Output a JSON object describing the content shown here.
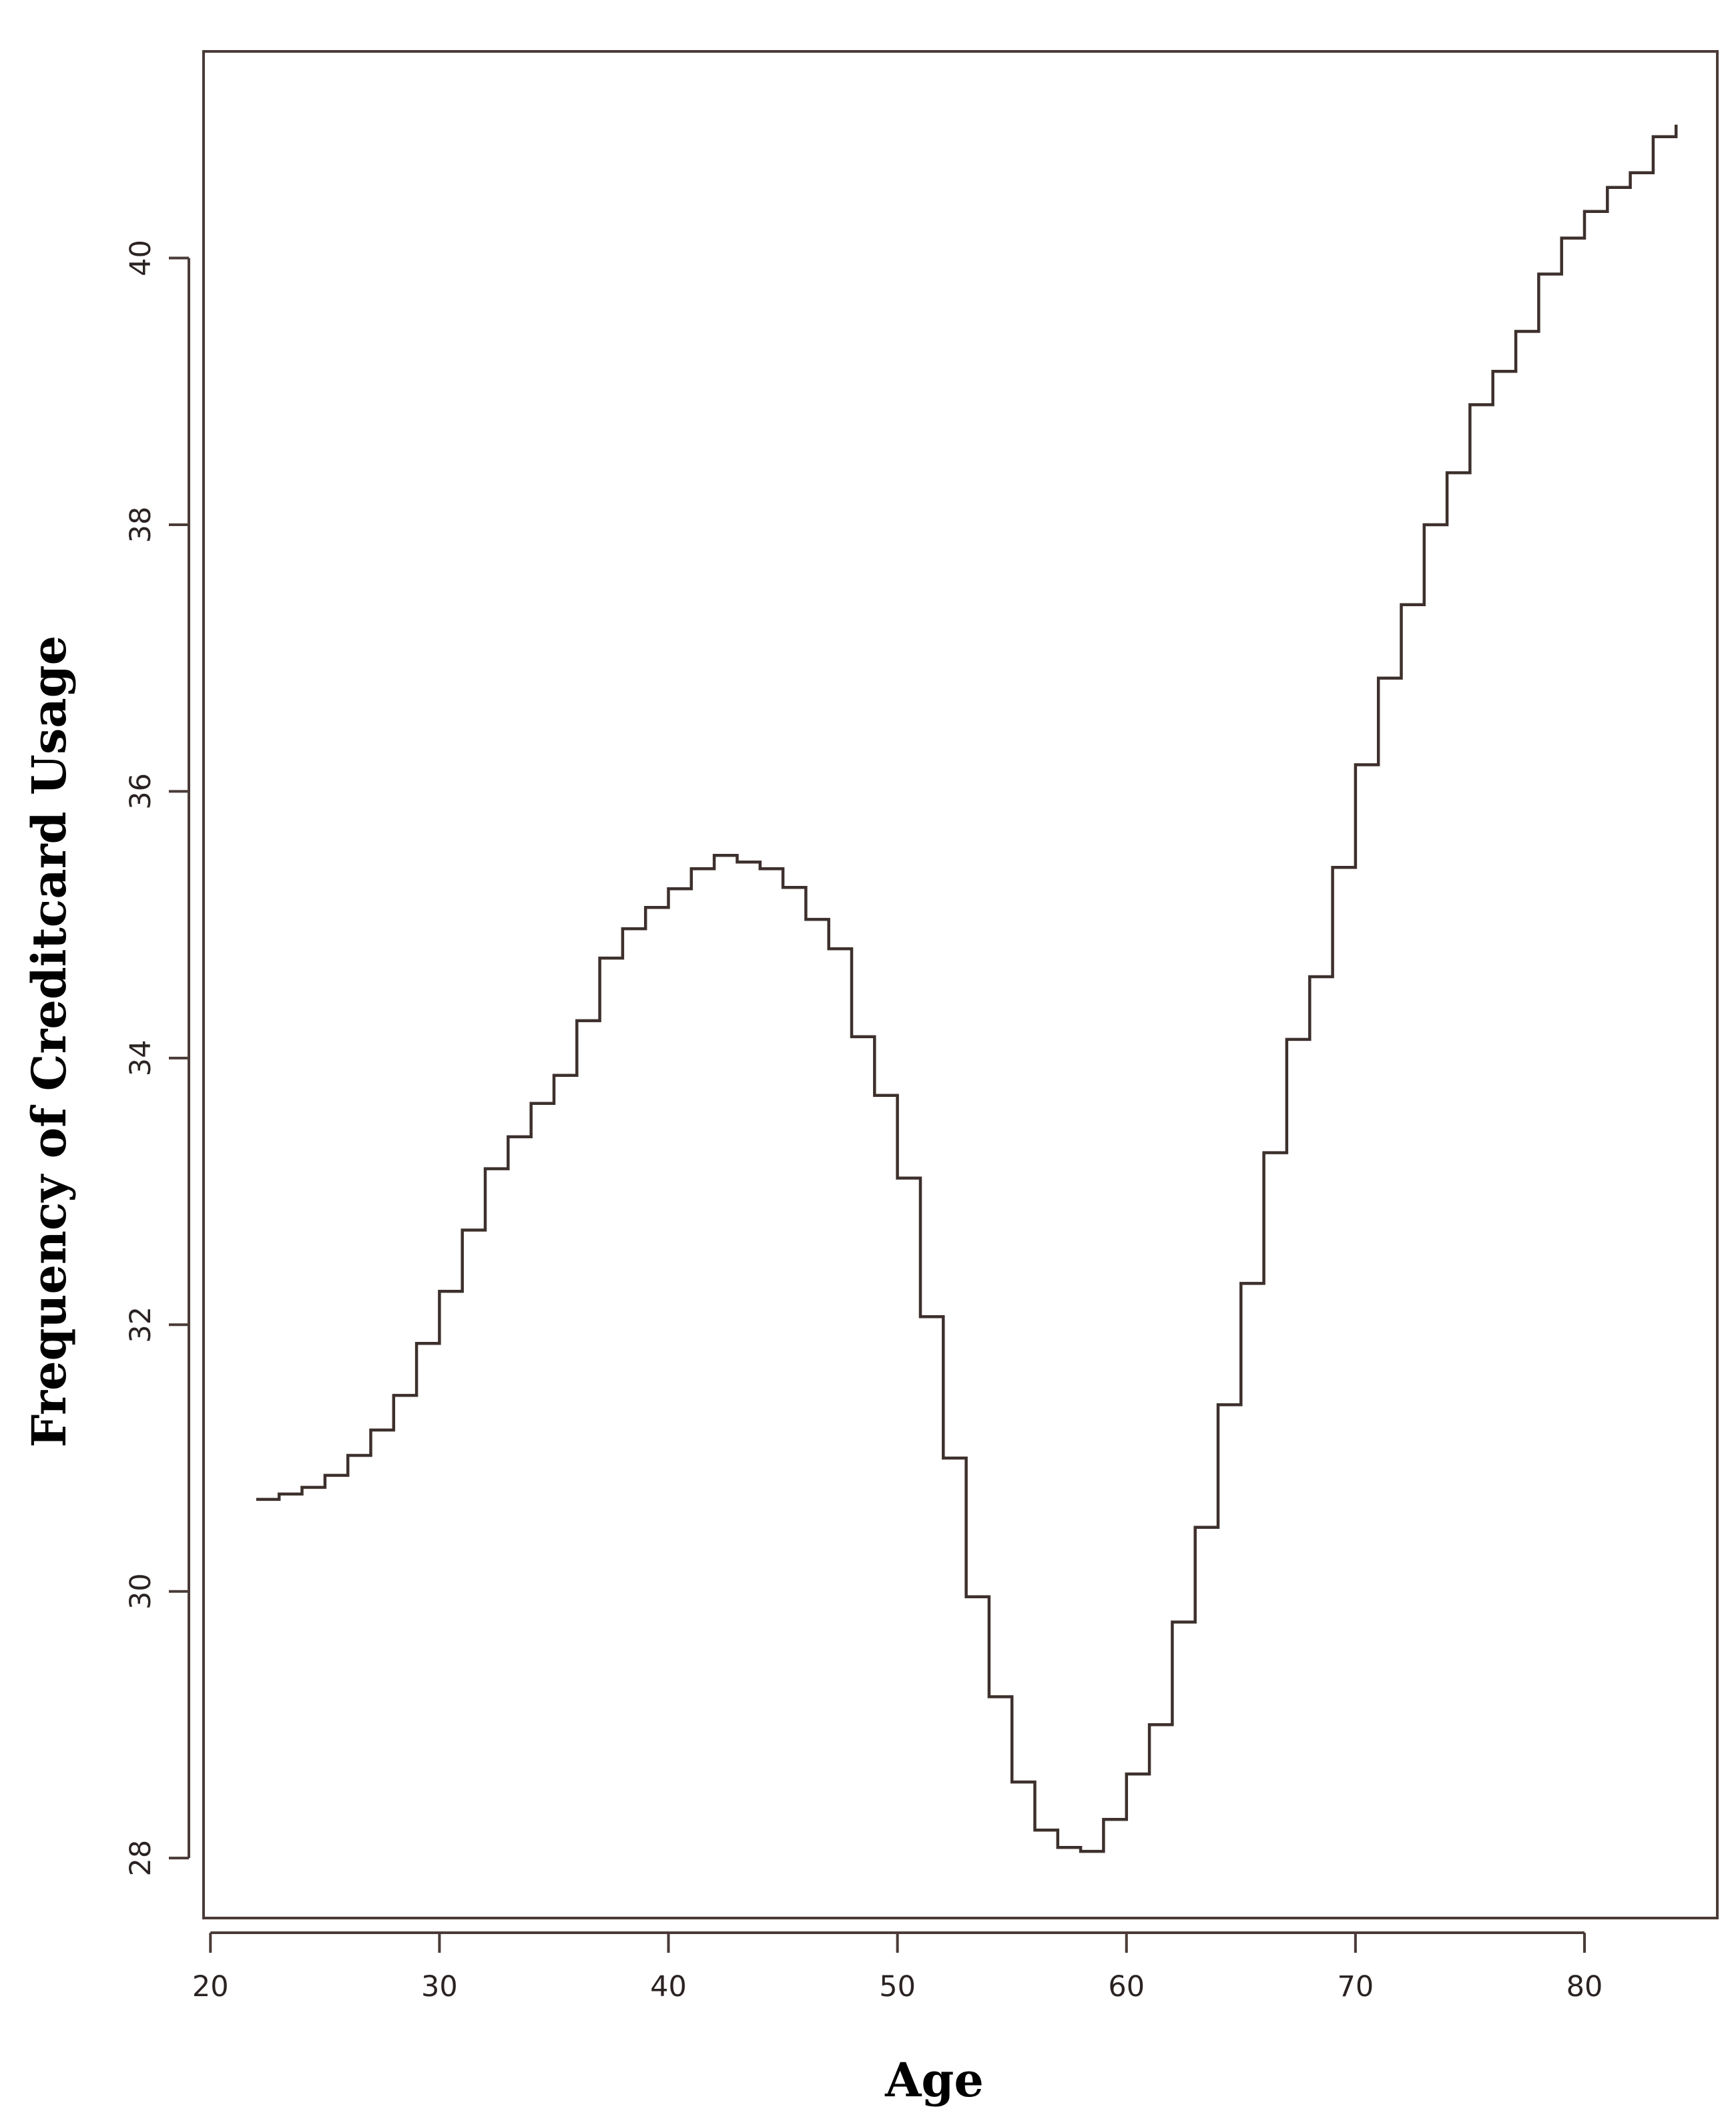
{
  "chart_data": {
    "type": "line",
    "step": true,
    "xlabel": "Age",
    "ylabel": "Frequency of Creditcard Usage",
    "xlim": [
      19.7,
      85.8
    ],
    "ylim": [
      27.55,
      41.55
    ],
    "xticks": [
      20,
      30,
      40,
      50,
      60,
      70,
      80
    ],
    "yticks": [
      28,
      30,
      32,
      34,
      36,
      38,
      40
    ],
    "grid": false,
    "legend": "none",
    "colors": {
      "line": "#3d302c",
      "frame": "#4a3b37"
    },
    "series": [
      {
        "x": [
          22,
          23,
          24,
          25,
          26,
          27,
          28,
          29,
          30,
          31,
          32,
          33,
          34,
          35,
          36,
          37,
          38,
          39,
          40,
          41,
          42,
          43,
          44,
          45,
          46,
          47,
          48,
          49,
          50,
          51,
          52,
          53,
          54,
          55,
          56,
          57,
          58,
          59,
          60,
          61,
          62,
          63,
          64,
          65,
          66,
          67,
          68,
          69,
          70,
          71,
          72,
          73,
          74,
          75,
          76,
          77,
          78,
          79,
          80,
          81,
          82,
          83,
          84
        ],
        "y": [
          30.69,
          30.73,
          30.78,
          30.87,
          31.02,
          31.21,
          31.47,
          31.86,
          32.25,
          32.71,
          33.17,
          33.41,
          33.66,
          33.87,
          34.28,
          34.75,
          34.97,
          35.13,
          35.27,
          35.42,
          35.52,
          35.47,
          35.42,
          35.28,
          35.04,
          34.82,
          34.16,
          33.72,
          33.1,
          32.06,
          31.0,
          29.96,
          29.21,
          28.57,
          28.21,
          28.08,
          28.05,
          28.29,
          28.63,
          29.0,
          29.77,
          30.48,
          31.4,
          32.31,
          33.29,
          34.14,
          34.61,
          35.43,
          36.2,
          36.85,
          37.4,
          38.0,
          38.39,
          38.9,
          39.15,
          39.45,
          39.88,
          40.15,
          40.35,
          40.53,
          40.64,
          40.91,
          41.0
        ]
      }
    ]
  }
}
